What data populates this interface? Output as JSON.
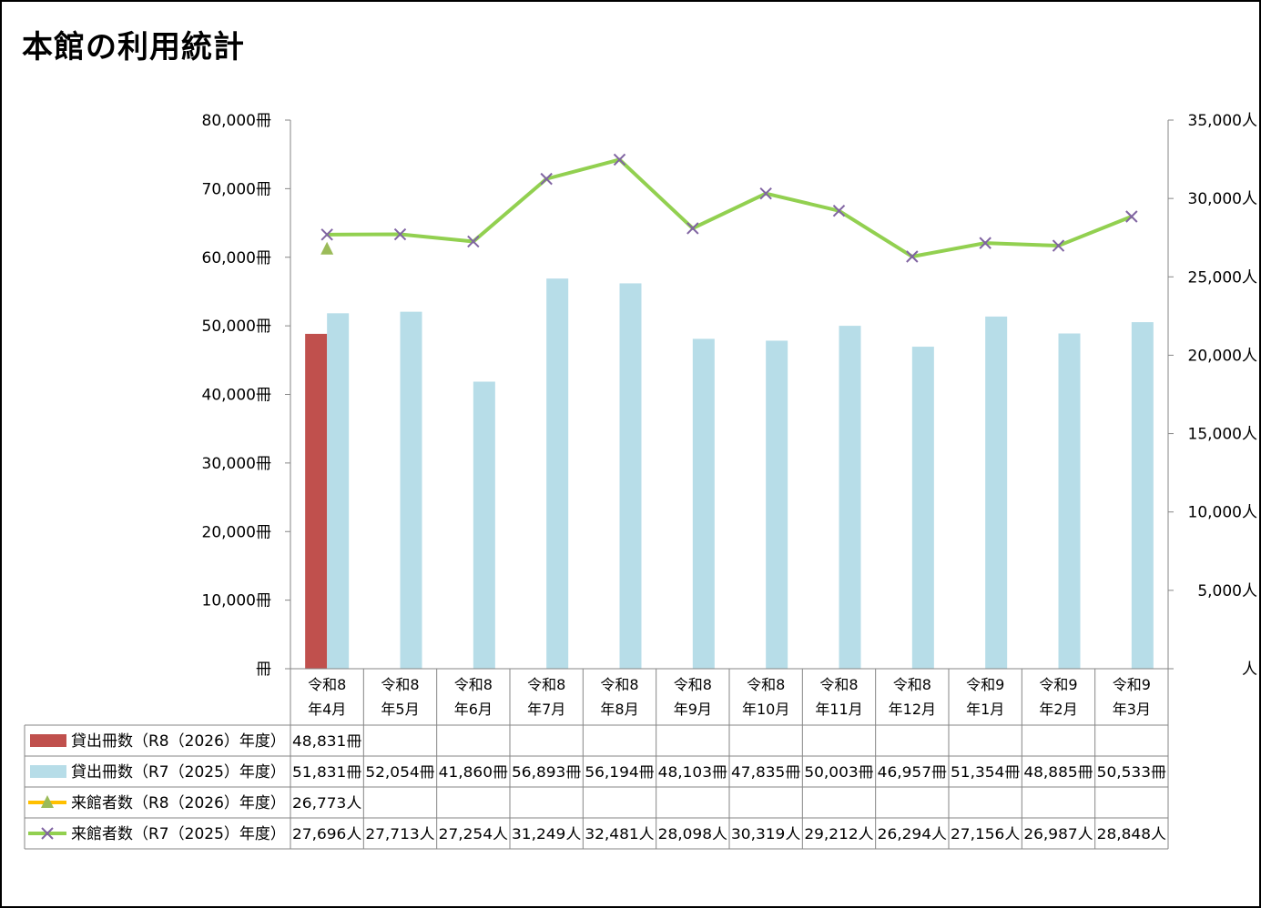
{
  "page_title": "本館の利用統計",
  "chart_data": {
    "type": "bar",
    "categories": [
      [
        "令和8",
        "年4月"
      ],
      [
        "令和8",
        "年5月"
      ],
      [
        "令和8",
        "年6月"
      ],
      [
        "令和8",
        "年7月"
      ],
      [
        "令和8",
        "年8月"
      ],
      [
        "令和8",
        "年9月"
      ],
      [
        "令和8",
        "年10月"
      ],
      [
        "令和8",
        "年11月"
      ],
      [
        "令和8",
        "年12月"
      ],
      [
        "令和9",
        "年1月"
      ],
      [
        "令和9",
        "年2月"
      ],
      [
        "令和9",
        "年3月"
      ]
    ],
    "y_left": {
      "min": 0,
      "max": 80000,
      "step": 10000,
      "unit": "冊",
      "tick_labels": [
        "冊",
        "10,000冊",
        "20,000冊",
        "30,000冊",
        "40,000冊",
        "50,000冊",
        "60,000冊",
        "70,000冊",
        "80,000冊"
      ]
    },
    "y_right": {
      "min": 0,
      "max": 35000,
      "step": 5000,
      "unit": "人",
      "tick_labels": [
        "人",
        "5,000人",
        "10,000人",
        "15,000人",
        "20,000人",
        "25,000人",
        "30,000人",
        "35,000人"
      ]
    },
    "series": [
      {
        "name": "貸出冊数（R8（2026）年度）",
        "kind": "bar",
        "axis": "left",
        "color": "#c0504d",
        "values": [
          48831,
          null,
          null,
          null,
          null,
          null,
          null,
          null,
          null,
          null,
          null,
          null
        ],
        "labels": [
          "48,831冊",
          "",
          "",
          "",
          "",
          "",
          "",
          "",
          "",
          "",
          "",
          ""
        ]
      },
      {
        "name": "貸出冊数（R7（2025）年度）",
        "kind": "bar",
        "axis": "left",
        "color": "#b7dde8",
        "values": [
          51831,
          52054,
          41860,
          56893,
          56194,
          48103,
          47835,
          50003,
          46957,
          51354,
          48885,
          50533
        ],
        "labels": [
          "51,831冊",
          "52,054冊",
          "41,860冊",
          "56,893冊",
          "56,194冊",
          "48,103冊",
          "47,835冊",
          "50,003冊",
          "46,957冊",
          "51,354冊",
          "48,885冊",
          "50,533冊"
        ]
      },
      {
        "name": "来館者数（R8（2026）年度）",
        "kind": "line",
        "axis": "right",
        "color": "#ffc000",
        "marker": "triangle",
        "marker_color": "#9bbb59",
        "values": [
          26773,
          null,
          null,
          null,
          null,
          null,
          null,
          null,
          null,
          null,
          null,
          null
        ],
        "labels": [
          "26,773人",
          "",
          "",
          "",
          "",
          "",
          "",
          "",
          "",
          "",
          "",
          ""
        ]
      },
      {
        "name": "来館者数（R7（2025）年度）",
        "kind": "line",
        "axis": "right",
        "color": "#92d050",
        "marker": "x",
        "marker_color": "#8064a2",
        "values": [
          27696,
          27713,
          27254,
          31249,
          32481,
          28098,
          30319,
          29212,
          26294,
          27156,
          26987,
          28848
        ],
        "labels": [
          "27,696人",
          "27,713人",
          "27,254人",
          "31,249人",
          "32,481人",
          "28,098人",
          "30,319人",
          "29,212人",
          "26,294人",
          "27,156人",
          "26,987人",
          "28,848人"
        ]
      }
    ],
    "grid": false,
    "legend": "data-table"
  }
}
